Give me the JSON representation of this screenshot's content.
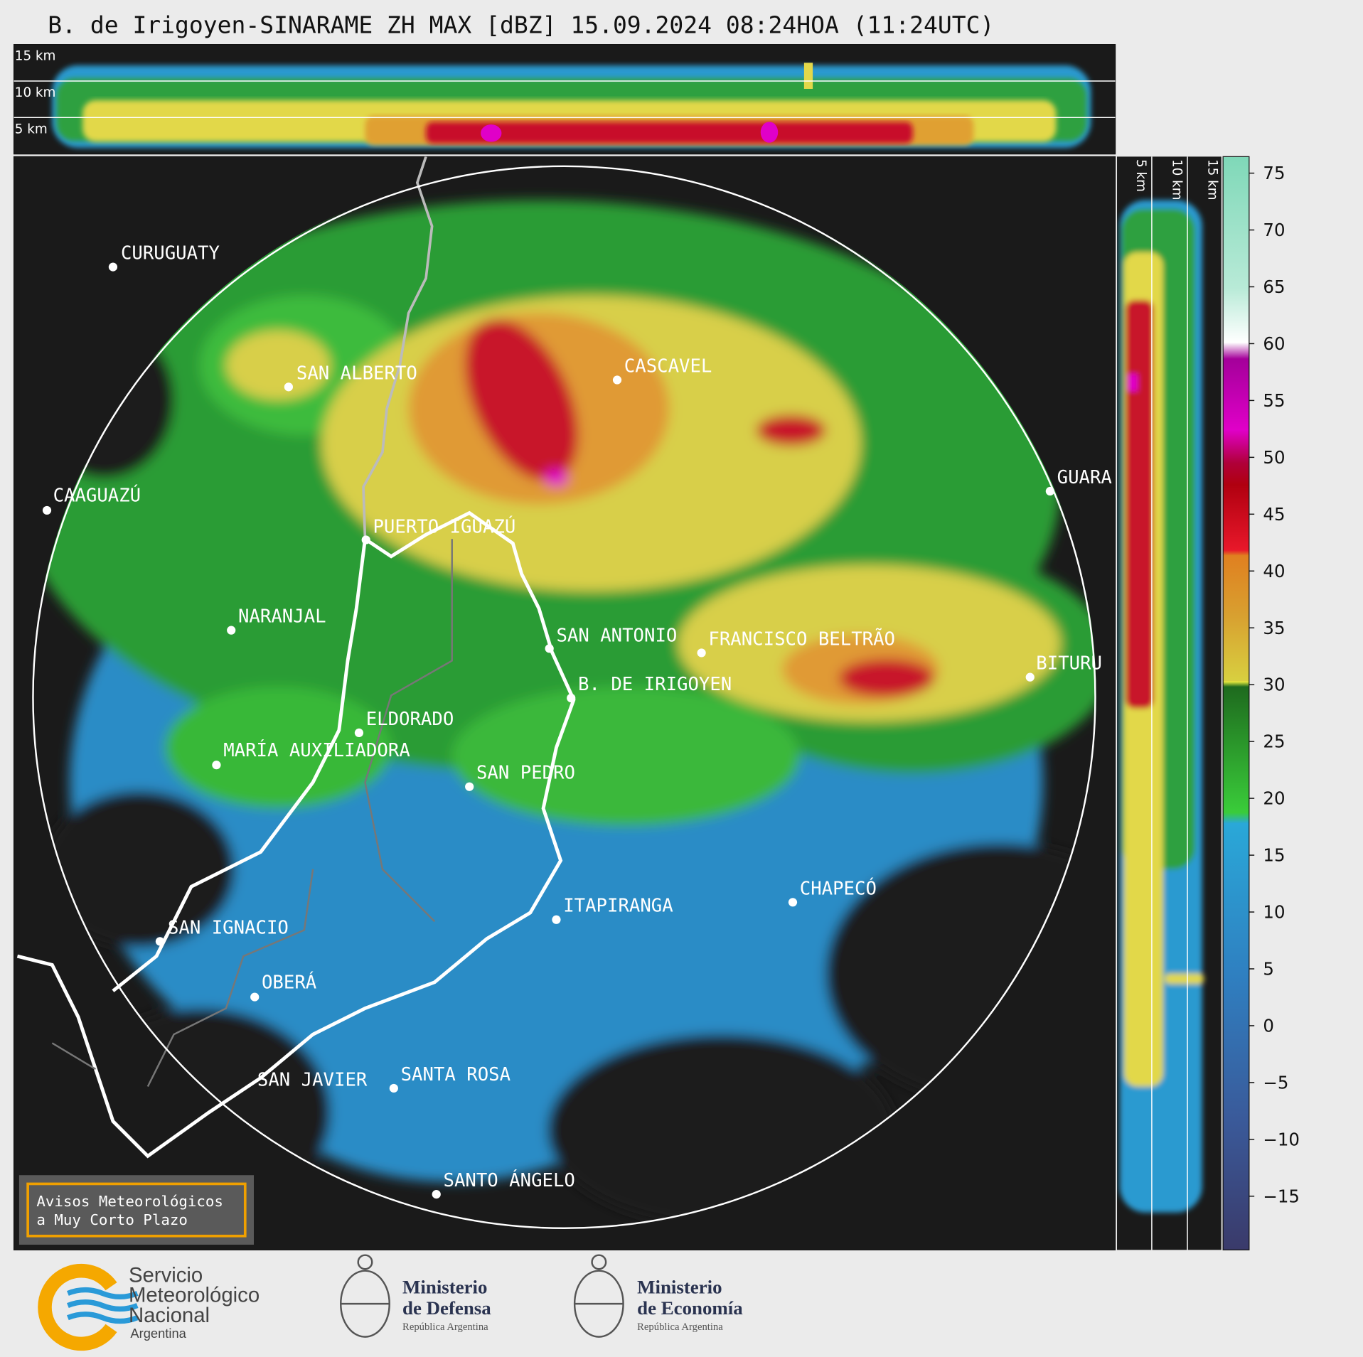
{
  "title": "B. de Irigoyen-SINARAME ZH MAX [dBZ] 15.09.2024 08:24HOA (11:24UTC)",
  "top_section": {
    "heights": [
      "15 km",
      "10 km",
      "5 km"
    ]
  },
  "side_section": {
    "heights": [
      "5 km",
      "10 km",
      "15 km"
    ]
  },
  "cities": [
    "CURUGUATY",
    "SAN ALBERTO",
    "CASCAVEL",
    "GUARA",
    "CAAGUAZÚ",
    "PUERTO IGUAZÚ",
    "NARANJAL",
    "SAN ANTONIO",
    "FRANCISCO BELTRÃO",
    "BITURU",
    "B. DE IRIGOYEN",
    "ELDORADO",
    "MARÍA AUXILIADORA",
    "SAN PEDRO",
    "CHAPECÓ",
    "ITAPIRANGA",
    "SAN IGNACIO",
    "OBERÁ",
    "SAN JAVIER",
    "SANTA ROSA",
    "SANTO ÁNGELO"
  ],
  "colorbar": {
    "ticks": [
      75,
      70,
      65,
      60,
      55,
      50,
      45,
      40,
      35,
      30,
      25,
      20,
      15,
      10,
      5,
      0,
      {
        "value": -5,
        "label": "−5"
      },
      {
        "value": -10,
        "label": "−10"
      },
      {
        "value": -15,
        "label": "−15"
      }
    ]
  },
  "warning_box": [
    "Avisos Meteorológicos",
    "a Muy Corto Plazo"
  ],
  "logos": [
    {
      "lines": [
        "Servicio",
        "Meteorológico",
        "Nacional",
        "Argentina"
      ]
    },
    {
      "lines": [
        "Ministerio",
        "de Defensa",
        "República Argentina"
      ]
    },
    {
      "lines": [
        "Ministerio",
        "de Economía",
        "República Argentina"
      ]
    }
  ]
}
